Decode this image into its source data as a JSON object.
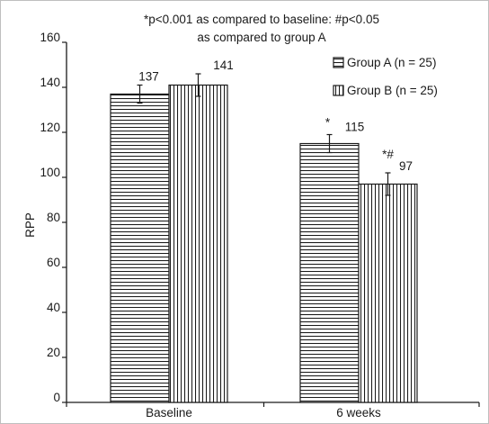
{
  "chart_data": {
    "type": "bar",
    "title": "*p<0.001 as compared to baseline: #p<0.05",
    "subtitle": "as compared to group A",
    "xlabel": "",
    "ylabel": "RPP",
    "ylim": [
      0,
      160
    ],
    "yticks": [
      0,
      20,
      40,
      60,
      80,
      100,
      120,
      140,
      160
    ],
    "categories": [
      "Baseline",
      "6 weeks"
    ],
    "series": [
      {
        "name": "Group A (n = 25)",
        "pattern": "horizontal-lines",
        "values": [
          137,
          115
        ],
        "errors": [
          4,
          4
        ],
        "labels": [
          "137",
          "115"
        ],
        "markers": [
          "",
          "*"
        ]
      },
      {
        "name": "Group B (n = 25)",
        "pattern": "vertical-lines",
        "values": [
          141,
          97
        ],
        "errors": [
          5,
          5
        ],
        "labels": [
          "141",
          "97"
        ],
        "markers": [
          "",
          "*#"
        ]
      }
    ],
    "legend_position": "top-right",
    "grid": false,
    "colors": {
      "stroke": "#1a1a1a",
      "fill": "#ffffff",
      "frame": "#bfbfbf"
    }
  }
}
